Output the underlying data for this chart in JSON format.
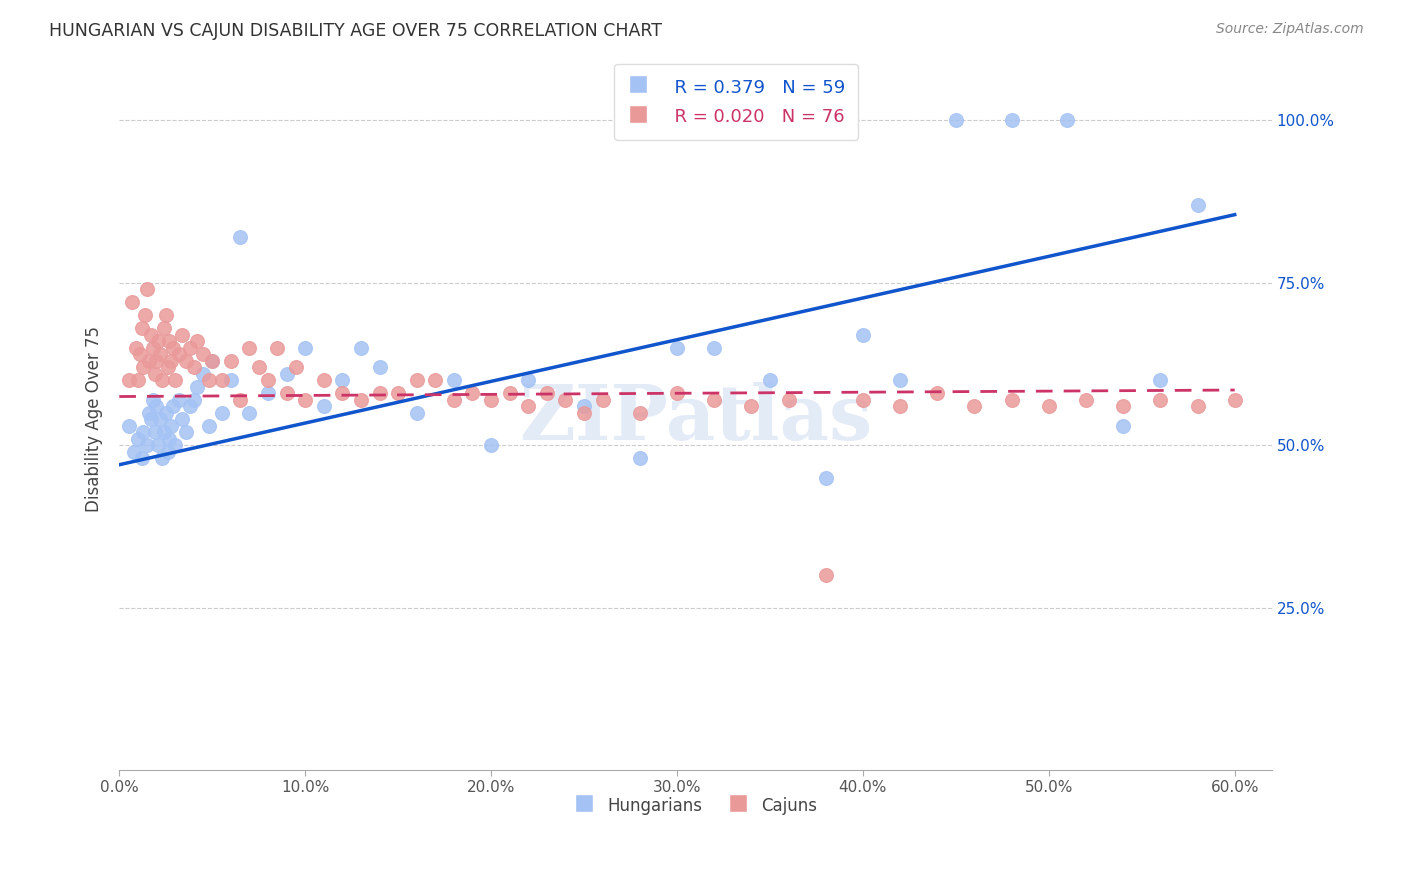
{
  "title": "HUNGARIAN VS CAJUN DISABILITY AGE OVER 75 CORRELATION CHART",
  "source": "Source: ZipAtlas.com",
  "ylabel": "Disability Age Over 75",
  "xlim": [
    0.0,
    0.62
  ],
  "ylim": [
    0.0,
    1.08
  ],
  "x_ticks": [
    0.0,
    0.1,
    0.2,
    0.3,
    0.4,
    0.5,
    0.6
  ],
  "x_tick_labels": [
    "0.0%",
    "10.0%",
    "20.0%",
    "30.0%",
    "40.0%",
    "50.0%",
    "60.0%"
  ],
  "y_ticks": [
    0.25,
    0.5,
    0.75,
    1.0
  ],
  "y_tick_labels": [
    "25.0%",
    "50.0%",
    "75.0%",
    "100.0%"
  ],
  "hungarian_color": "#a4c2f4",
  "cajun_color": "#ea9999",
  "hungarian_line_color": "#1155cc",
  "cajun_line_color": "#cc3366",
  "legend_label_hun": "R = 0.379   N = 59",
  "legend_label_caj": "R = 0.020   N = 76",
  "bottom_legend_hun": "Hungarians",
  "bottom_legend_caj": "Cajuns",
  "watermark": "ZIPatlas",
  "hun_line_x0": 0.0,
  "hun_line_y0": 0.47,
  "hun_line_x1": 0.6,
  "hun_line_y1": 0.855,
  "caj_line_x0": 0.0,
  "caj_line_y0": 0.575,
  "caj_line_x1": 0.6,
  "caj_line_y1": 0.585,
  "hungarian_x": [
    0.005,
    0.008,
    0.01,
    0.012,
    0.013,
    0.015,
    0.016,
    0.017,
    0.018,
    0.019,
    0.02,
    0.021,
    0.022,
    0.023,
    0.024,
    0.025,
    0.026,
    0.027,
    0.028,
    0.029,
    0.03,
    0.032,
    0.034,
    0.036,
    0.038,
    0.04,
    0.042,
    0.045,
    0.048,
    0.05,
    0.055,
    0.06,
    0.065,
    0.07,
    0.08,
    0.09,
    0.1,
    0.11,
    0.12,
    0.13,
    0.14,
    0.16,
    0.18,
    0.2,
    0.22,
    0.25,
    0.28,
    0.3,
    0.32,
    0.35,
    0.38,
    0.4,
    0.42,
    0.45,
    0.48,
    0.51,
    0.54,
    0.56,
    0.58
  ],
  "hungarian_y": [
    0.53,
    0.49,
    0.51,
    0.48,
    0.52,
    0.5,
    0.55,
    0.54,
    0.57,
    0.52,
    0.56,
    0.5,
    0.54,
    0.48,
    0.52,
    0.55,
    0.49,
    0.51,
    0.53,
    0.56,
    0.5,
    0.57,
    0.54,
    0.52,
    0.56,
    0.57,
    0.59,
    0.61,
    0.53,
    0.63,
    0.55,
    0.6,
    0.82,
    0.55,
    0.58,
    0.61,
    0.65,
    0.56,
    0.6,
    0.65,
    0.62,
    0.55,
    0.6,
    0.5,
    0.6,
    0.56,
    0.48,
    0.65,
    0.65,
    0.6,
    0.45,
    0.67,
    0.6,
    1.0,
    1.0,
    1.0,
    0.53,
    0.6,
    0.87
  ],
  "cajun_x": [
    0.005,
    0.007,
    0.009,
    0.01,
    0.011,
    0.012,
    0.013,
    0.014,
    0.015,
    0.016,
    0.017,
    0.018,
    0.019,
    0.02,
    0.021,
    0.022,
    0.023,
    0.024,
    0.025,
    0.026,
    0.027,
    0.028,
    0.029,
    0.03,
    0.032,
    0.034,
    0.036,
    0.038,
    0.04,
    0.042,
    0.045,
    0.048,
    0.05,
    0.055,
    0.06,
    0.065,
    0.07,
    0.075,
    0.08,
    0.085,
    0.09,
    0.095,
    0.1,
    0.11,
    0.12,
    0.13,
    0.14,
    0.15,
    0.16,
    0.17,
    0.18,
    0.19,
    0.2,
    0.21,
    0.22,
    0.23,
    0.24,
    0.25,
    0.26,
    0.28,
    0.3,
    0.32,
    0.34,
    0.36,
    0.38,
    0.4,
    0.42,
    0.44,
    0.46,
    0.48,
    0.5,
    0.52,
    0.54,
    0.56,
    0.58,
    0.6
  ],
  "cajun_y": [
    0.6,
    0.72,
    0.65,
    0.6,
    0.64,
    0.68,
    0.62,
    0.7,
    0.74,
    0.63,
    0.67,
    0.65,
    0.61,
    0.63,
    0.66,
    0.64,
    0.6,
    0.68,
    0.7,
    0.62,
    0.66,
    0.63,
    0.65,
    0.6,
    0.64,
    0.67,
    0.63,
    0.65,
    0.62,
    0.66,
    0.64,
    0.6,
    0.63,
    0.6,
    0.63,
    0.57,
    0.65,
    0.62,
    0.6,
    0.65,
    0.58,
    0.62,
    0.57,
    0.6,
    0.58,
    0.57,
    0.58,
    0.58,
    0.6,
    0.6,
    0.57,
    0.58,
    0.57,
    0.58,
    0.56,
    0.58,
    0.57,
    0.55,
    0.57,
    0.55,
    0.58,
    0.57,
    0.56,
    0.57,
    0.3,
    0.57,
    0.56,
    0.58,
    0.56,
    0.57,
    0.56,
    0.57,
    0.56,
    0.57,
    0.56,
    0.57
  ]
}
